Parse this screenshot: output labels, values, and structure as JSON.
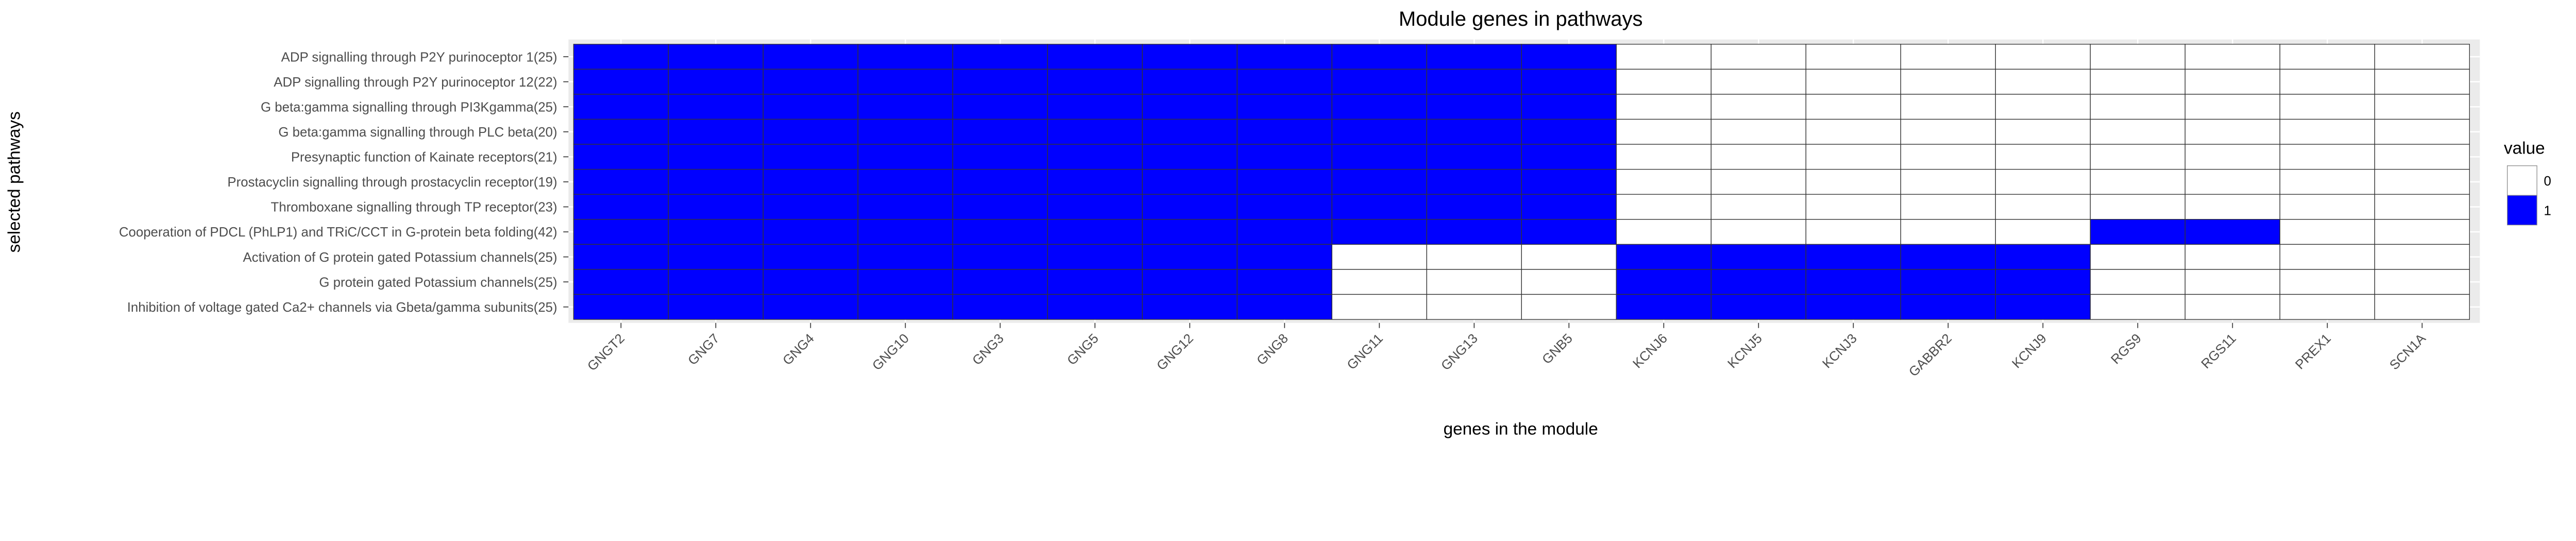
{
  "chart_data": {
    "type": "heatmap",
    "title": "Module genes in pathways",
    "xlabel": "genes in the module",
    "ylabel": "selected pathways",
    "grid": true,
    "legend": {
      "title": "value",
      "position": "right",
      "entries": [
        {
          "label": "0",
          "color": "#ffffff"
        },
        {
          "label": "1",
          "color": "#0000ff"
        }
      ]
    },
    "colors": {
      "0": "#ffffff",
      "1": "#0000ff",
      "panel": "#ebebeb",
      "tile_border": "#333333"
    },
    "x_categories": [
      "GNGT2",
      "GNG7",
      "GNG4",
      "GNG10",
      "GNG3",
      "GNG5",
      "GNG12",
      "GNG8",
      "GNG11",
      "GNG13",
      "GNB5",
      "KCNJ6",
      "KCNJ5",
      "KCNJ3",
      "GABBR2",
      "KCNJ9",
      "RGS9",
      "RGS11",
      "PREX1",
      "SCN1A"
    ],
    "y_categories": [
      "ADP signalling through P2Y purinoceptor 1(25)",
      "ADP signalling through P2Y purinoceptor 12(22)",
      "G beta:gamma signalling through PI3Kgamma(25)",
      "G beta:gamma signalling through PLC beta(20)",
      "Presynaptic function of Kainate receptors(21)",
      "Prostacyclin signalling through prostacyclin receptor(19)",
      "Thromboxane signalling through TP receptor(23)",
      "Cooperation of PDCL (PhLP1) and TRiC/CCT in G-protein beta folding(42)",
      "Activation of G protein gated Potassium channels(25)",
      "G protein gated Potassium channels(25)",
      "Inhibition  of voltage gated Ca2+ channels via Gbeta/gamma subunits(25)"
    ],
    "values": [
      [
        1,
        1,
        1,
        1,
        1,
        1,
        1,
        1,
        1,
        1,
        1,
        0,
        0,
        0,
        0,
        0,
        0,
        0,
        0,
        0
      ],
      [
        1,
        1,
        1,
        1,
        1,
        1,
        1,
        1,
        1,
        1,
        1,
        0,
        0,
        0,
        0,
        0,
        0,
        0,
        0,
        0
      ],
      [
        1,
        1,
        1,
        1,
        1,
        1,
        1,
        1,
        1,
        1,
        1,
        0,
        0,
        0,
        0,
        0,
        0,
        0,
        0,
        0
      ],
      [
        1,
        1,
        1,
        1,
        1,
        1,
        1,
        1,
        1,
        1,
        1,
        0,
        0,
        0,
        0,
        0,
        0,
        0,
        0,
        0
      ],
      [
        1,
        1,
        1,
        1,
        1,
        1,
        1,
        1,
        1,
        1,
        1,
        0,
        0,
        0,
        0,
        0,
        0,
        0,
        0,
        0
      ],
      [
        1,
        1,
        1,
        1,
        1,
        1,
        1,
        1,
        1,
        1,
        1,
        0,
        0,
        0,
        0,
        0,
        0,
        0,
        0,
        0
      ],
      [
        1,
        1,
        1,
        1,
        1,
        1,
        1,
        1,
        1,
        1,
        1,
        0,
        0,
        0,
        0,
        0,
        0,
        0,
        0,
        0
      ],
      [
        1,
        1,
        1,
        1,
        1,
        1,
        1,
        1,
        1,
        1,
        1,
        0,
        0,
        0,
        0,
        0,
        1,
        1,
        0,
        0
      ],
      [
        1,
        1,
        1,
        1,
        1,
        1,
        1,
        1,
        0,
        0,
        0,
        1,
        1,
        1,
        1,
        1,
        0,
        0,
        0,
        0
      ],
      [
        1,
        1,
        1,
        1,
        1,
        1,
        1,
        1,
        0,
        0,
        0,
        1,
        1,
        1,
        1,
        1,
        0,
        0,
        0,
        0
      ],
      [
        1,
        1,
        1,
        1,
        1,
        1,
        1,
        1,
        0,
        0,
        0,
        1,
        1,
        1,
        1,
        1,
        0,
        0,
        0,
        0
      ]
    ]
  }
}
